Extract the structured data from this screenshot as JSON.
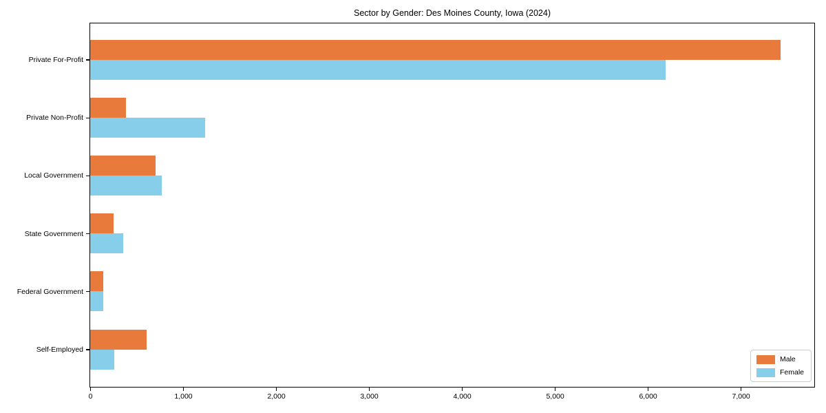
{
  "title": "Sector by Gender: Des Moines County, Iowa (2024)",
  "chart_data": {
    "type": "bar",
    "orientation": "horizontal",
    "title": "Sector by Gender: Des Moines County, Iowa (2024)",
    "categories": [
      "Private For-Profit",
      "Private Non-Profit",
      "Local Government",
      "State Government",
      "Federal Government",
      "Self-Employed"
    ],
    "series": [
      {
        "name": "Male",
        "color": "#e87a3c",
        "values": [
          7430,
          385,
          705,
          255,
          140,
          605
        ]
      },
      {
        "name": "Female",
        "color": "#87ceeb",
        "values": [
          6190,
          1235,
          770,
          355,
          140,
          260
        ]
      }
    ],
    "xlabel": "",
    "ylabel": "",
    "xlim": [
      0,
      7784
    ],
    "xticks": [
      0,
      1000,
      2000,
      3000,
      4000,
      5000,
      6000,
      7000
    ],
    "xtick_labels": [
      "0",
      "1,000",
      "2,000",
      "3,000",
      "4,000",
      "5,000",
      "6,000",
      "7,000"
    ],
    "grid": false,
    "legend_position": "lower right"
  },
  "legend": {
    "items": [
      {
        "label": "Male",
        "color": "#e87a3c"
      },
      {
        "label": "Female",
        "color": "#87ceeb"
      }
    ]
  }
}
